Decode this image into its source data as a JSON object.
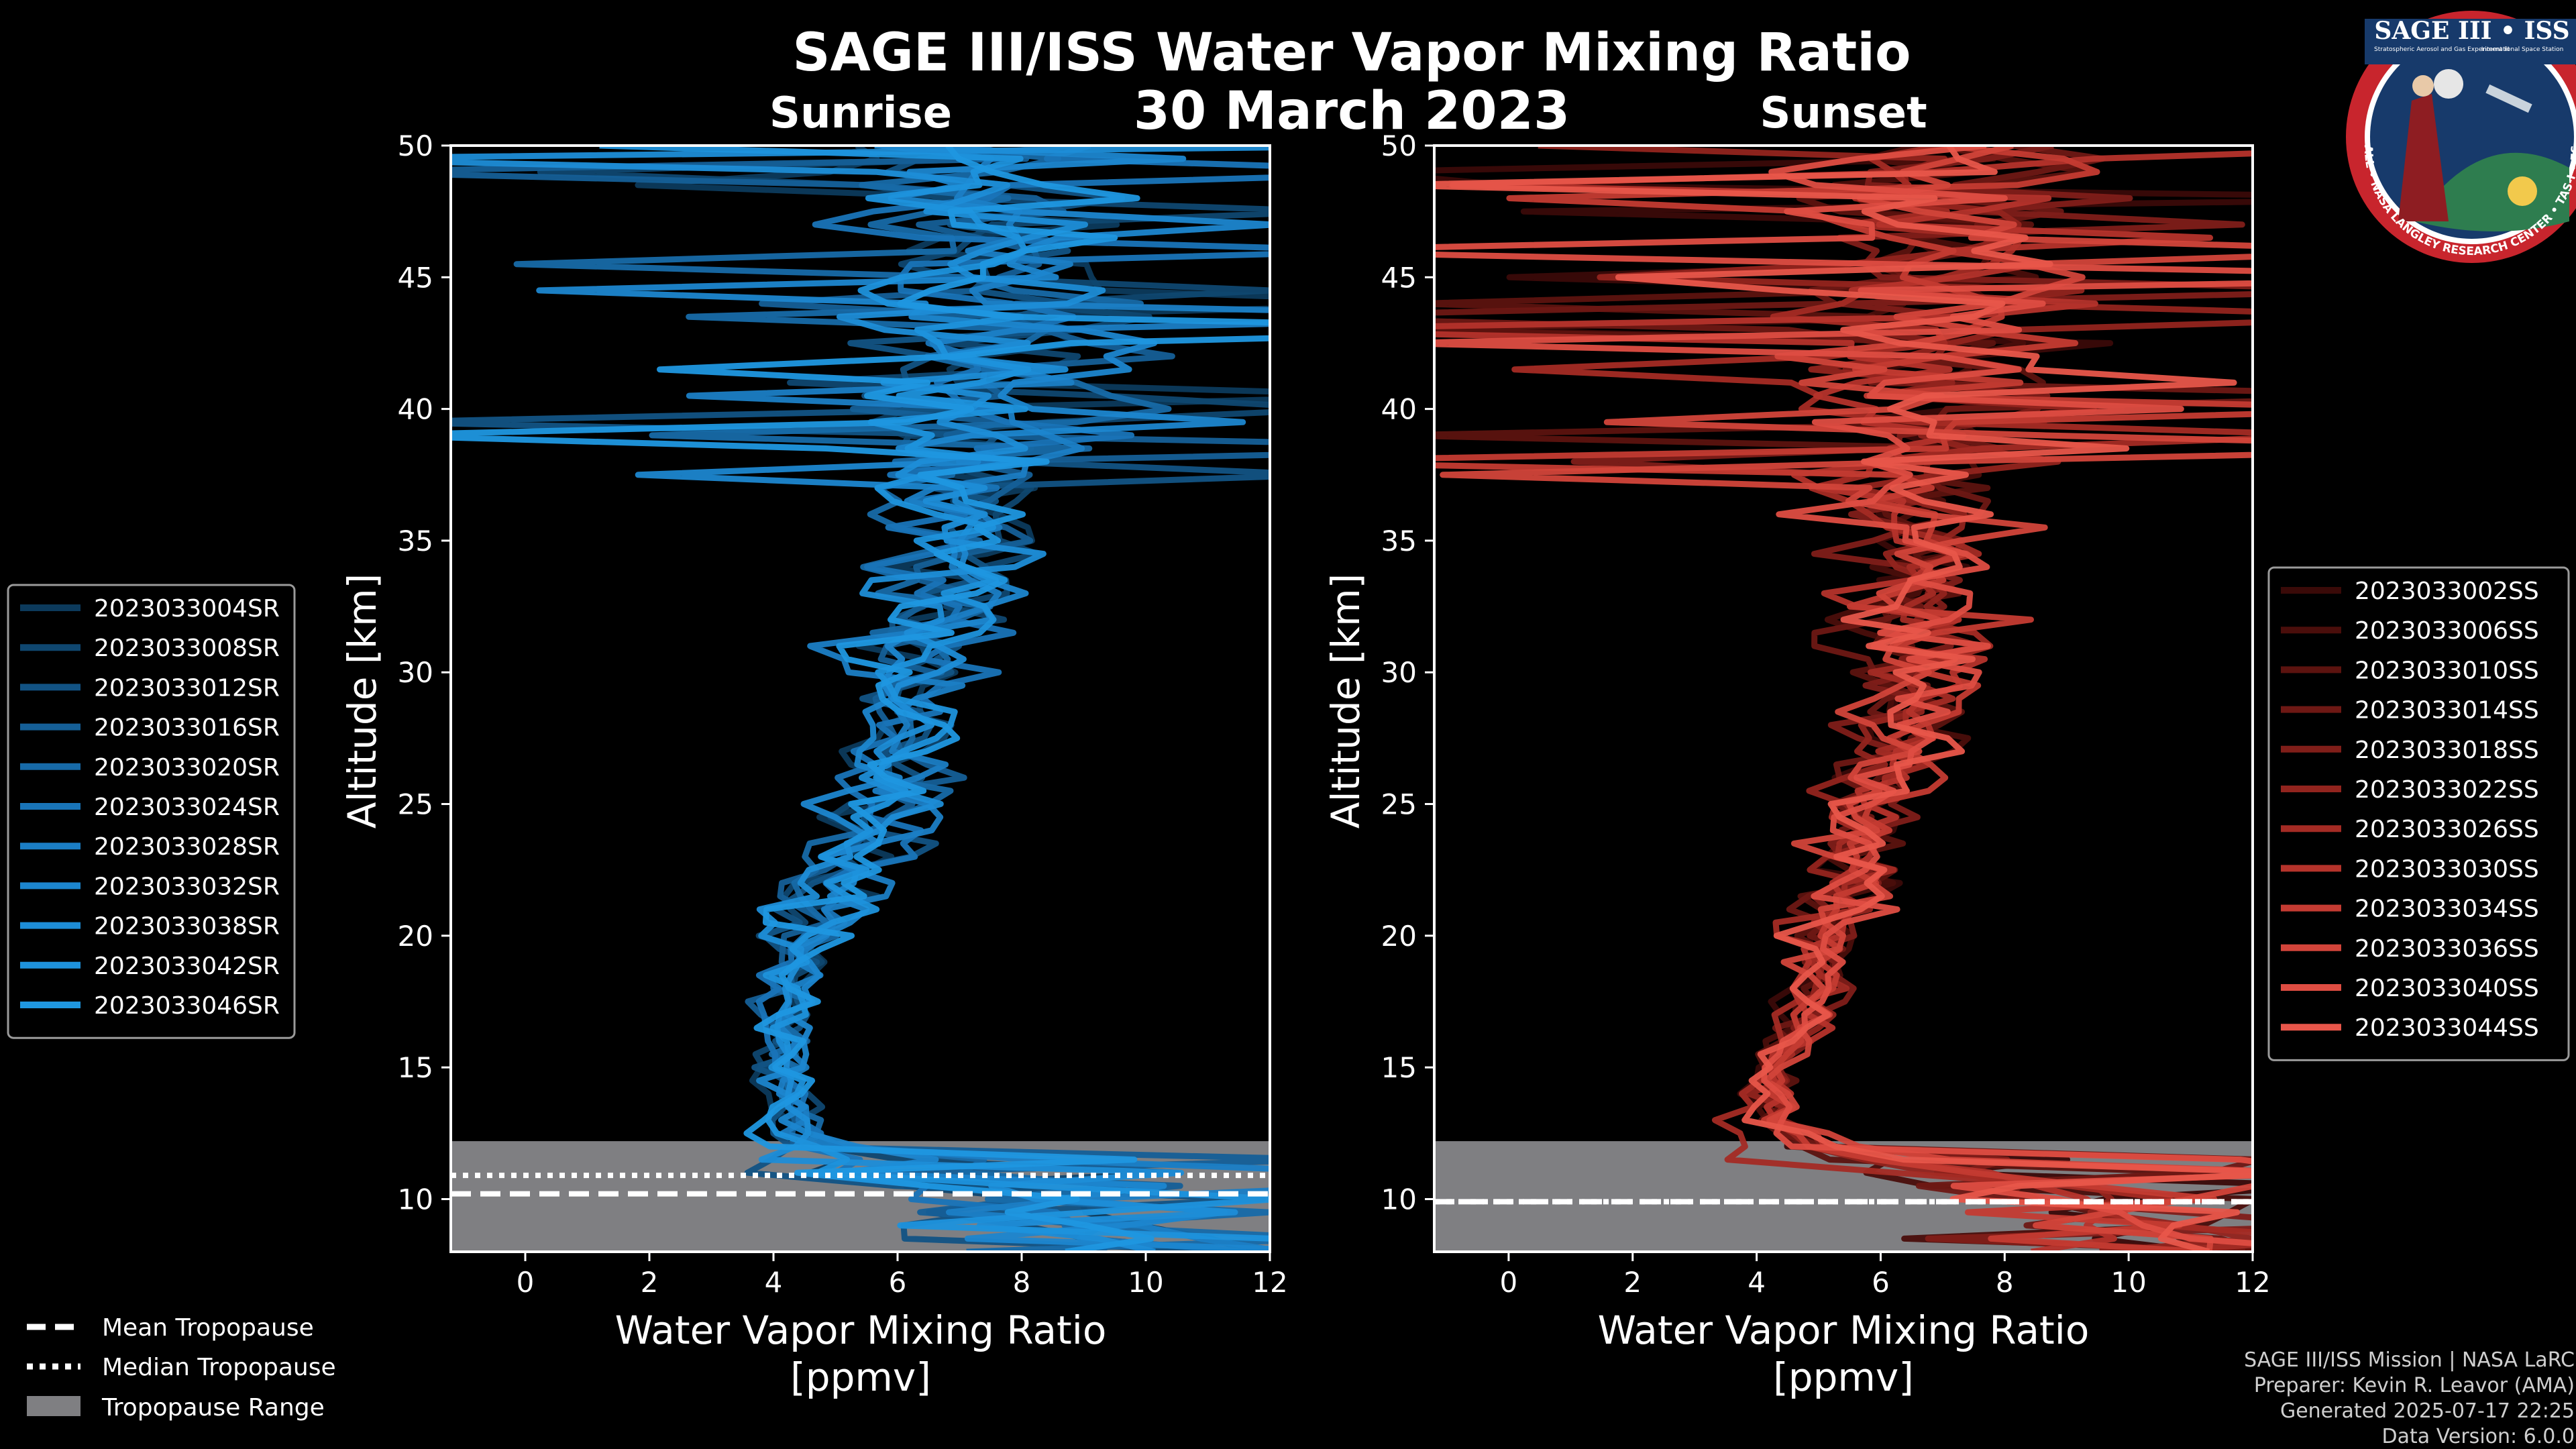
{
  "colors": {
    "background": "#000000",
    "sunrise": "#1f8fd6",
    "sunset": "#e8564a",
    "tropopause_range": "#7f7f82",
    "axis": "#ffffff",
    "badge_ring": "#c8252d",
    "badge_field": "#173a6b"
  },
  "chart_data": {
    "type": "line",
    "title": "SAGE III/ISS Water Vapor Mixing Ratio",
    "subtitle": "30 March 2023",
    "panels": [
      {
        "name": "Sunrise",
        "xlabel": "Water Vapor Mixing Ratio",
        "xlabel_units": "[ppmv]",
        "ylabel": "Altitude [km]",
        "xlim": [
          -1.2,
          12
        ],
        "ylim": [
          8,
          50
        ],
        "xticks": [
          0,
          2,
          4,
          6,
          8,
          10,
          12
        ],
        "yticks": [
          10,
          15,
          20,
          25,
          30,
          35,
          40,
          45,
          50
        ],
        "tropopause_range": [
          8,
          12.2
        ],
        "mean_tropopause": 10.2,
        "median_tropopause": 10.9,
        "series": [
          {
            "name": "2023033004SR",
            "color": "#0c3a5c"
          },
          {
            "name": "2023033008SR",
            "color": "#0f4770"
          },
          {
            "name": "2023033012SR",
            "color": "#125384"
          },
          {
            "name": "2023033016SR",
            "color": "#155f97"
          },
          {
            "name": "2023033020SR",
            "color": "#176aa8"
          },
          {
            "name": "2023033024SR",
            "color": "#1974b8"
          },
          {
            "name": "2023033028SR",
            "color": "#1b7ec5"
          },
          {
            "name": "2023033032SR",
            "color": "#1c86cf"
          },
          {
            "name": "2023033038SR",
            "color": "#1d8dd7"
          },
          {
            "name": "2023033042SR",
            "color": "#1e92dc"
          },
          {
            "name": "2023033046SR",
            "color": "#1f97e0"
          }
        ]
      },
      {
        "name": "Sunset",
        "xlabel": "Water Vapor Mixing Ratio",
        "xlabel_units": "[ppmv]",
        "ylabel": "Altitude [km]",
        "xlim": [
          -1.2,
          12
        ],
        "ylim": [
          8,
          50
        ],
        "xticks": [
          0,
          2,
          4,
          6,
          8,
          10,
          12
        ],
        "yticks": [
          10,
          15,
          20,
          25,
          30,
          35,
          40,
          45,
          50
        ],
        "tropopause_range": [
          8,
          12.2
        ],
        "mean_tropopause": 9.9,
        "median_tropopause": 9.9,
        "series": [
          {
            "name": "2023033002SS",
            "color": "#3a0a08"
          },
          {
            "name": "2023033006SS",
            "color": "#4a0e0b"
          },
          {
            "name": "2023033010SS",
            "color": "#5c130f"
          },
          {
            "name": "2023033014SS",
            "color": "#6e1814"
          },
          {
            "name": "2023033018SS",
            "color": "#801e19"
          },
          {
            "name": "2023033022SS",
            "color": "#92241e"
          },
          {
            "name": "2023033026SS",
            "color": "#a42b24"
          },
          {
            "name": "2023033030SS",
            "color": "#b5332b"
          },
          {
            "name": "2023033034SS",
            "color": "#c43b32"
          },
          {
            "name": "2023033036SS",
            "color": "#d2443a"
          },
          {
            "name": "2023033040SS",
            "color": "#de4d42"
          },
          {
            "name": "2023033044SS",
            "color": "#e8564a"
          }
        ]
      }
    ]
  },
  "tropopause_legend": {
    "mean": "Mean Tropopause",
    "median": "Median Tropopause",
    "range": "Tropopause Range"
  },
  "badge": {
    "title": "SAGE III • ISS",
    "line1": "Stratospheric Aerosol and Gas Experiment III",
    "line2": "International Space Station",
    "ring_text": "BALL • NASA LANGLEY RESEARCH CENTER • TAS-I • ESA"
  },
  "footer": {
    "line1": "SAGE III/ISS Mission | NASA LaRC",
    "line2": "Preparer: Kevin R. Leavor (AMA)",
    "line3": "Generated 2025-07-17 22:25",
    "line4": "Data Version: 6.0.0"
  }
}
